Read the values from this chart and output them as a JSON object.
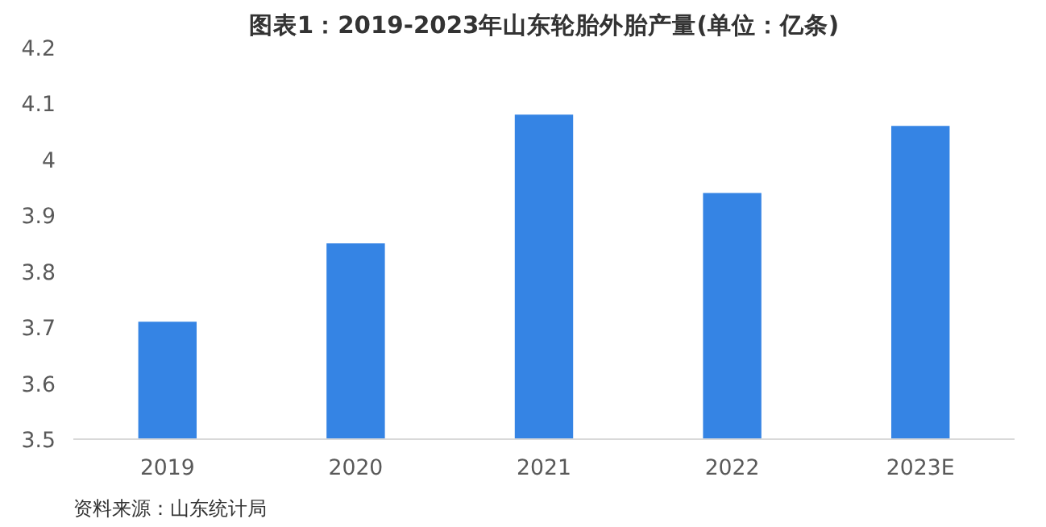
{
  "chart_data": {
    "type": "bar",
    "title": "图表1：2019-2023年山东轮胎外胎产量(单位：亿条)",
    "categories": [
      "2019",
      "2020",
      "2021",
      "2022",
      "2023E"
    ],
    "values": [
      3.71,
      3.85,
      4.08,
      3.94,
      4.06
    ],
    "color": "#3584e4",
    "ylim": [
      3.5,
      4.2
    ],
    "yticks": [
      3.5,
      3.6,
      3.7,
      3.8,
      3.9,
      4,
      4.1,
      4.2
    ],
    "grid": false,
    "annotations": [
      "资料来源：山东统计局"
    ]
  }
}
